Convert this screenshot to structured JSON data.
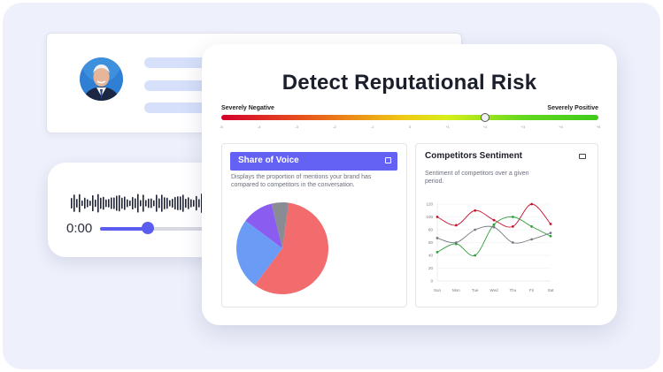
{
  "main": {
    "title": "Detect Reputational Risk",
    "scale": {
      "left_label": "Severely Negative",
      "right_label": "Severely Positive",
      "ticks": [
        "-5",
        "-4",
        "-3",
        "-2",
        "-1",
        "0",
        "+1",
        "+2",
        "+3",
        "+4",
        "+5"
      ],
      "value": 2
    }
  },
  "share_of_voice": {
    "title": "Share of Voice",
    "description": "Displays the proportion of mentions your brand has compared to competitors in the conversation.",
    "icon": "expand-icon"
  },
  "competitors_sentiment": {
    "title": "Competitors Sentiment",
    "description": "Sentiment of competitors over a given period.",
    "icon": "screen-icon"
  },
  "audio": {
    "time": "0:00",
    "progress": 0.4
  },
  "chart_data": [
    {
      "type": "pie",
      "title": "",
      "slices": [
        {
          "value": 58,
          "color": "#f26b6d"
        },
        {
          "value": 25,
          "color": "#6b9cf5"
        },
        {
          "value": 11,
          "color": "#8b5cf0"
        },
        {
          "value": 6,
          "color": "#8a8c93"
        }
      ]
    },
    {
      "type": "line",
      "title": "",
      "categories": [
        "Sun",
        "Mon",
        "Tue",
        "Wed",
        "Thu",
        "Fri",
        "Sat"
      ],
      "ylim": [
        0,
        120
      ],
      "yticks": [
        "120",
        "100",
        "80",
        "60",
        "40",
        "20",
        "0"
      ],
      "series": [
        {
          "color": "#c8102e",
          "values": [
            100,
            87,
            110,
            95,
            85,
            120,
            89
          ]
        },
        {
          "color": "#2e9e3a",
          "values": [
            45,
            58,
            40,
            88,
            100,
            85,
            70
          ]
        },
        {
          "color": "#777a82",
          "values": [
            67,
            60,
            80,
            84,
            60,
            65,
            75
          ]
        }
      ]
    }
  ]
}
